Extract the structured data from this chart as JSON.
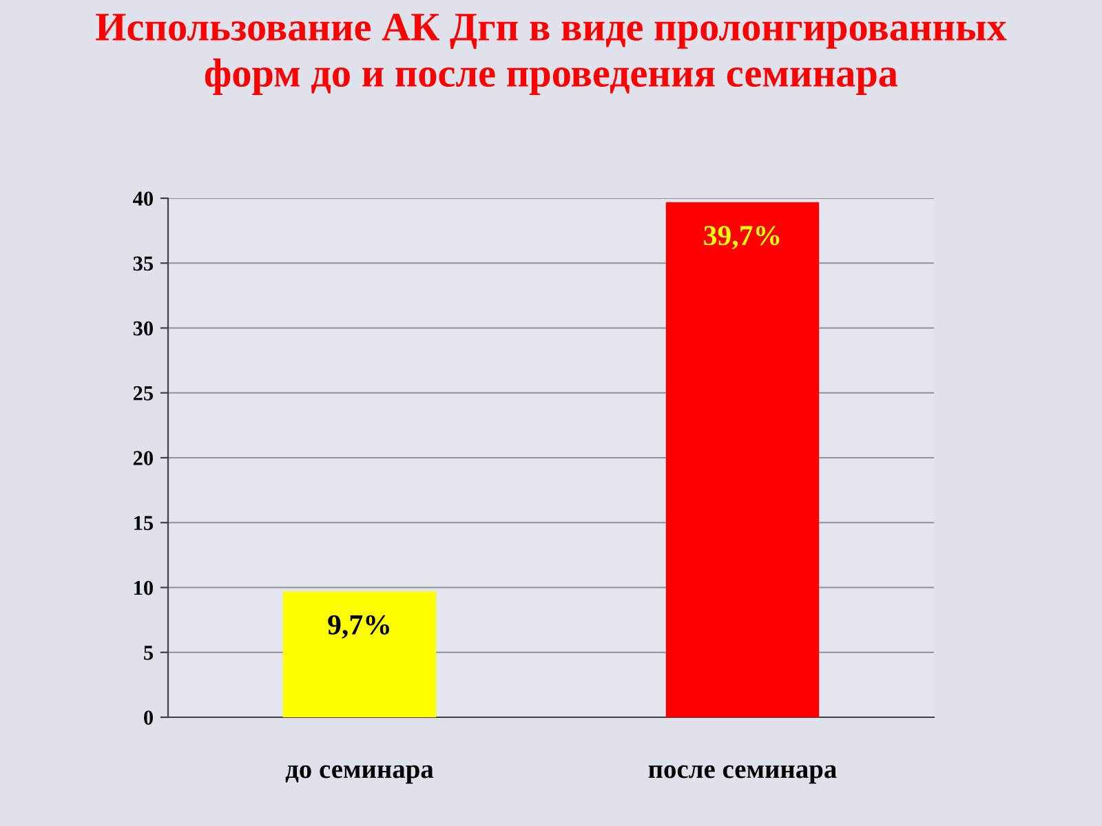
{
  "chart_data": {
    "type": "bar",
    "title": "Использование АК Дгп в виде пролонгированных\nформ до и после проведения семинара",
    "categories": [
      "до семинара",
      "после семинара"
    ],
    "values": [
      9.7,
      39.7
    ],
    "colors": [
      "#ffff00",
      "#ff0000"
    ],
    "value_labels": [
      "9,7%",
      "39,7%"
    ],
    "ylim": [
      0,
      40
    ],
    "yticks": [
      0,
      5,
      10,
      15,
      20,
      25,
      30,
      35,
      40
    ],
    "grid": "y",
    "legend": false
  }
}
